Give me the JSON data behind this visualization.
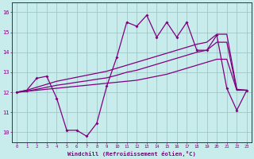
{
  "xlabel": "Windchill (Refroidissement éolien,°C)",
  "background_color": "#c8ecec",
  "grid_color": "#a0c8c8",
  "line_color": "#800080",
  "x_ticks": [
    0,
    1,
    2,
    3,
    4,
    5,
    6,
    7,
    8,
    9,
    10,
    11,
    12,
    13,
    14,
    15,
    16,
    17,
    18,
    19,
    20,
    21,
    22,
    23
  ],
  "y_ticks": [
    10,
    11,
    12,
    13,
    14,
    15,
    16
  ],
  "ylim": [
    9.5,
    16.5
  ],
  "xlim": [
    -0.5,
    23.5
  ],
  "series1_x": [
    0,
    1,
    2,
    3,
    4,
    5,
    6,
    7,
    8,
    9,
    10,
    11,
    12,
    13,
    14,
    15,
    16,
    17,
    18,
    19,
    20,
    21,
    22,
    23
  ],
  "series1_y": [
    12.0,
    12.1,
    12.7,
    12.8,
    11.7,
    10.1,
    10.1,
    9.8,
    10.45,
    12.3,
    13.75,
    15.5,
    15.3,
    15.85,
    14.75,
    15.5,
    14.75,
    15.5,
    14.1,
    14.1,
    14.85,
    12.2,
    11.1,
    12.1
  ],
  "series2_x": [
    0,
    1,
    2,
    3,
    4,
    5,
    6,
    7,
    8,
    9,
    10,
    11,
    12,
    13,
    14,
    15,
    16,
    17,
    18,
    19,
    20,
    21,
    22,
    23
  ],
  "series2_y": [
    12.0,
    12.05,
    12.1,
    12.15,
    12.2,
    12.25,
    12.3,
    12.35,
    12.4,
    12.45,
    12.5,
    12.55,
    12.6,
    12.7,
    12.8,
    12.9,
    13.05,
    13.2,
    13.35,
    13.5,
    13.65,
    13.65,
    12.1,
    12.1
  ],
  "series3_x": [
    0,
    1,
    2,
    3,
    4,
    5,
    6,
    7,
    8,
    9,
    10,
    11,
    12,
    13,
    14,
    15,
    16,
    17,
    18,
    19,
    20,
    21,
    22,
    23
  ],
  "series3_y": [
    12.0,
    12.1,
    12.25,
    12.4,
    12.55,
    12.65,
    12.75,
    12.85,
    12.95,
    13.05,
    13.2,
    13.35,
    13.5,
    13.65,
    13.8,
    13.95,
    14.1,
    14.25,
    14.4,
    14.5,
    14.9,
    14.9,
    12.15,
    12.1
  ],
  "series4_x": [
    0,
    1,
    2,
    3,
    4,
    5,
    6,
    7,
    8,
    9,
    10,
    11,
    12,
    13,
    14,
    15,
    16,
    17,
    18,
    19,
    20,
    21,
    22,
    23
  ],
  "series4_y": [
    12.0,
    12.05,
    12.15,
    12.25,
    12.35,
    12.42,
    12.5,
    12.57,
    12.65,
    12.72,
    12.85,
    13.0,
    13.1,
    13.25,
    13.4,
    13.55,
    13.7,
    13.85,
    14.0,
    14.1,
    14.5,
    14.5,
    12.12,
    12.1
  ]
}
